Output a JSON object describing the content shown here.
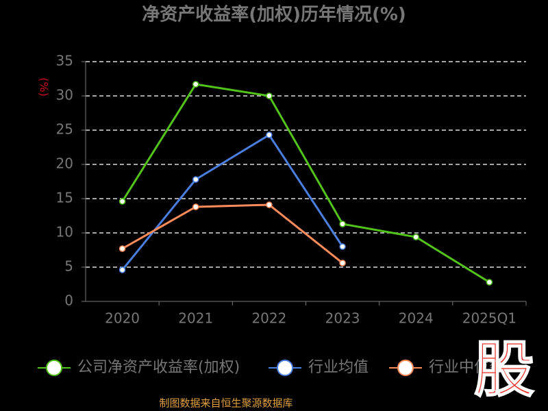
{
  "chart_data": {
    "type": "line",
    "title": "净资产收益率(加权)历年情况(%)",
    "y_label": "(%)",
    "categories": [
      "2020",
      "2021",
      "2022",
      "2023",
      "2024",
      "2025Q1"
    ],
    "series": [
      {
        "name": "公司净资产收益率(加权)",
        "color": "#52c41a",
        "values": [
          14.6,
          31.7,
          30.0,
          11.3,
          9.4,
          2.8
        ]
      },
      {
        "name": "行业均值",
        "color": "#4a7fe0",
        "values": [
          4.6,
          17.8,
          24.3,
          8.0,
          null,
          null
        ]
      },
      {
        "name": "行业中位数",
        "color": "#ff8c5a",
        "values": [
          7.7,
          13.8,
          14.1,
          5.6,
          null,
          null
        ]
      }
    ],
    "ylim": [
      0,
      35
    ],
    "yticks": [
      0,
      5,
      10,
      15,
      20,
      25,
      30,
      35
    ],
    "grid": true,
    "source": "制图数据来自恒生聚源数据库",
    "logo": "股"
  }
}
